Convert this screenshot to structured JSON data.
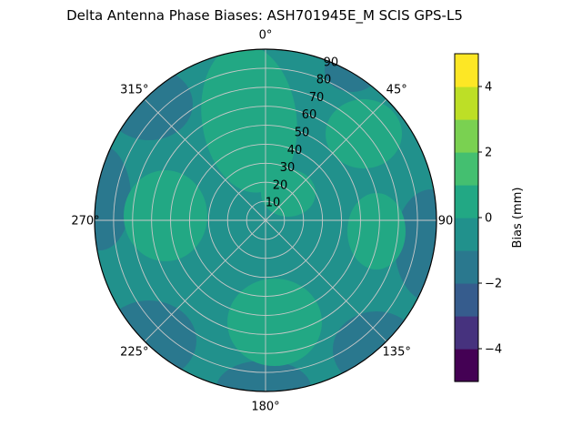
{
  "title": "Delta Antenna Phase Biases: ASH701945E_M    SCIS GPS-L5",
  "chart_data": {
    "type": "polar_contour",
    "title": "Delta Antenna Phase Biases: ASH701945E_M    SCIS GPS-L5",
    "antenna": "ASH701945E_M",
    "signal": "SCIS GPS-L5",
    "angular_ticks": [
      {
        "deg": 0,
        "label": "0°"
      },
      {
        "deg": 45,
        "label": "45°"
      },
      {
        "deg": 90,
        "label": "90"
      },
      {
        "deg": 135,
        "label": "135°"
      },
      {
        "deg": 180,
        "label": "180°"
      },
      {
        "deg": 225,
        "label": "225°"
      },
      {
        "deg": 270,
        "label": "270°"
      },
      {
        "deg": 315,
        "label": "315°"
      }
    ],
    "radial_ticks": [
      "10",
      "20",
      "30",
      "40",
      "50",
      "60",
      "70",
      "80",
      "90"
    ],
    "radial_range": [
      0,
      90
    ],
    "radial_label_angle_deg": 22.5,
    "grid": true,
    "colormap": "viridis",
    "colorbar": {
      "label": "Bias (mm)",
      "range": [
        -5,
        5
      ],
      "ticks": [
        {
          "value": 4,
          "label": "4"
        },
        {
          "value": 2,
          "label": "2"
        },
        {
          "value": 0,
          "label": "0"
        },
        {
          "value": -2,
          "label": "−2"
        },
        {
          "value": -4,
          "label": "−4"
        }
      ],
      "segment_colors_low_to_high": [
        "#440154",
        "#46327e",
        "#365c8d",
        "#2a788e",
        "#21918c",
        "#22a884",
        "#44bf70",
        "#7ad151",
        "#bddf26",
        "#fde725"
      ]
    },
    "region_colors": {
      "base": "#21918c",
      "green": "#22a884",
      "dark": "#2a788e"
    },
    "bias_summary": "Bias mostly between -2 and +1 mm: teal base near 0 mm; greener lobes (0 to 1 mm) from center toward azimuth 0°, left of center, below center and upper-right; slightly darker teal lobes (-2 to -1 mm) at the rim near azimuths 90°, 135°, 180°, 225°, 285° and 315°."
  }
}
